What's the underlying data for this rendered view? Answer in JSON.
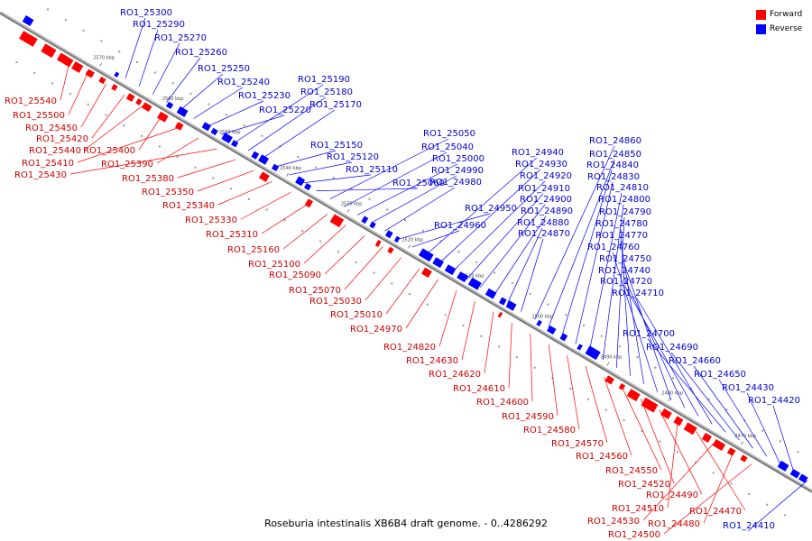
{
  "caption": "Roseburia intestinalis XB6B4 draft genome. - 0..4286292",
  "legend": {
    "forward_label": "Forward",
    "reverse_label": "Reverse",
    "forward_color": "#ff0000",
    "reverse_color": "#0000ff"
  },
  "colors": {
    "forward_text": "#cc0000",
    "reverse_text": "#0000cc",
    "backbone": "#888888"
  },
  "ticks": [
    "2570 kbp",
    "2560 kbp",
    "2550 kbp",
    "2540 kbp",
    "2530 kbp",
    "2520 kbp",
    "2510 kbp",
    "2500 kbp",
    "2490 kbp",
    "2480 kbp",
    "2470 kbp"
  ],
  "forward_labels": [
    "RO1_25540",
    "RO1_25500",
    "RO1_25450",
    "RO1_25420",
    "RO1_25440",
    "RO1_25400",
    "RO1_25410",
    "RO1_25390",
    "RO1_25430",
    "RO1_25380",
    "RO1_25350",
    "RO1_25340",
    "RO1_25330",
    "RO1_25310",
    "RO1_25160",
    "RO1_25100",
    "RO1_25090",
    "RO1_25070",
    "RO1_25030",
    "RO1_25010",
    "RO1_24970",
    "RO1_24820",
    "RO1_24630",
    "RO1_24620",
    "RO1_24610",
    "RO1_24600",
    "RO1_24590",
    "RO1_24580",
    "RO1_24570",
    "RO1_24560",
    "RO1_24550",
    "RO1_24520",
    "RO1_24490",
    "RO1_24510",
    "RO1_24470",
    "RO1_24530",
    "RO1_24480",
    "RO1_24500"
  ],
  "reverse_labels": [
    "RO1_25300",
    "RO1_25290",
    "RO1_25270",
    "RO1_25260",
    "RO1_25250",
    "RO1_25240",
    "RO1_25230",
    "RO1_25220",
    "RO1_25190",
    "RO1_25180",
    "RO1_25170",
    "RO1_25150",
    "RO1_25120",
    "RO1_25110",
    "RO1_25060",
    "RO1_25050",
    "RO1_25040",
    "RO1_25000",
    "RO1_24990",
    "RO1_24980",
    "RO1_24950",
    "RO1_24960",
    "RO1_24940",
    "RO1_24930",
    "RO1_24920",
    "RO1_24910",
    "RO1_24900",
    "RO1_24890",
    "RO1_24880",
    "RO1_24870",
    "RO1_24860",
    "RO1_24850",
    "RO1_24840",
    "RO1_24830",
    "RO1_24810",
    "RO1_24800",
    "RO1_24790",
    "RO1_24780",
    "RO1_24770",
    "RO1_24760",
    "RO1_24750",
    "RO1_24740",
    "RO1_24720",
    "RO1_24710",
    "RO1_24700",
    "RO1_24690",
    "RO1_24660",
    "RO1_24650",
    "RO1_24430",
    "RO1_24420",
    "RO1_24410"
  ]
}
